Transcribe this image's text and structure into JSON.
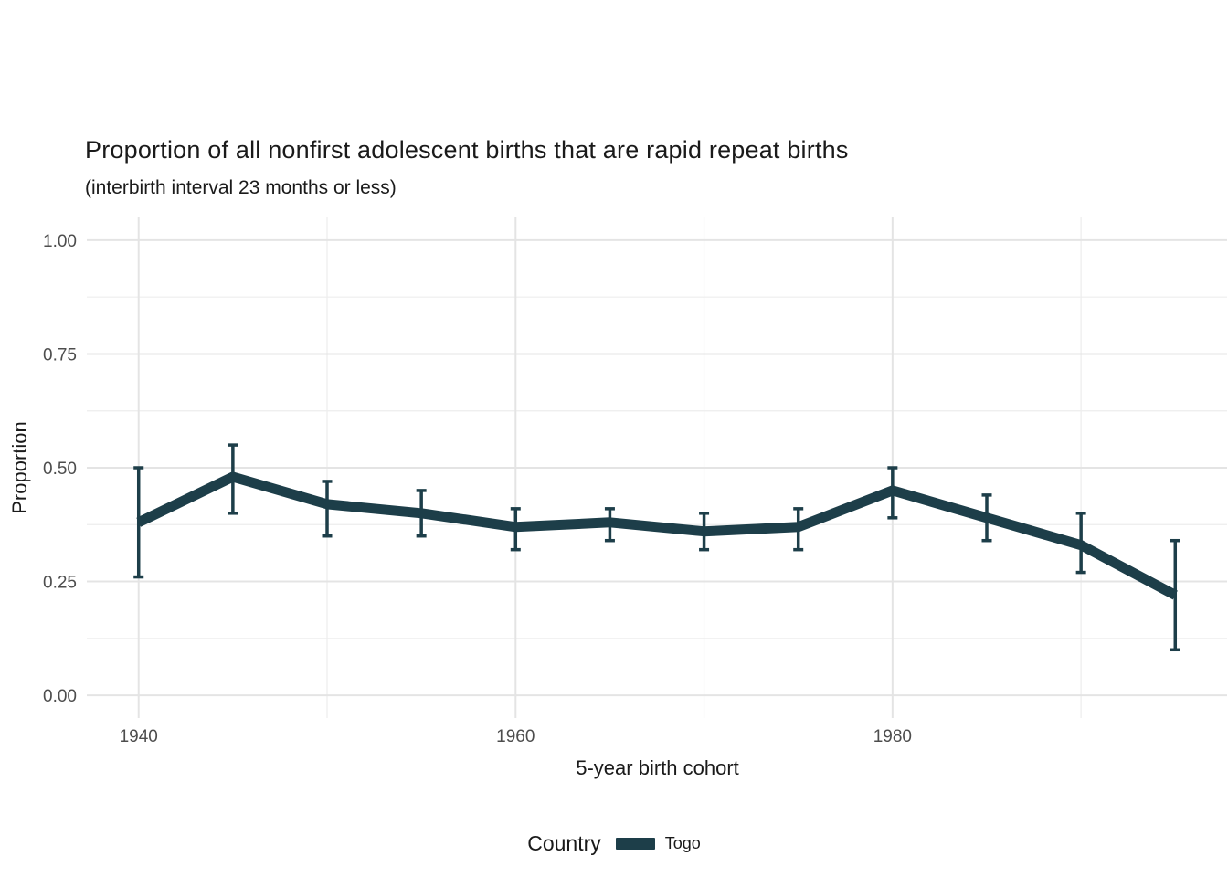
{
  "title": "Proportion of all nonfirst adolescent births that are rapid repeat births",
  "subtitle": "(interbirth interval 23 months or less)",
  "axes": {
    "y_label": "Proportion",
    "x_label": "5-year birth cohort",
    "y_tick_labels": [
      "0.00",
      "0.25",
      "0.50",
      "0.75",
      "1.00"
    ],
    "x_tick_labels": [
      "1940",
      "1960",
      "1980"
    ]
  },
  "legend": {
    "title": "Country",
    "items": [
      {
        "label": "Togo",
        "color": "#1d3e49",
        "swatch": "line"
      }
    ],
    "position": "bottom"
  },
  "colors": {
    "line": "#1d3e49",
    "grid_major": "#e4e4e4",
    "grid_minor": "#ededed",
    "tick_text": "#4d4d4d",
    "text": "#1a1a1a",
    "background": "#ffffff"
  },
  "chart_data": {
    "type": "line",
    "title": "Proportion of all nonfirst adolescent births that are rapid repeat births",
    "subtitle": "(interbirth interval 23 months or less)",
    "xlabel": "5-year birth cohort",
    "ylabel": "Proportion",
    "grid": true,
    "legend_position": "bottom",
    "xlim": [
      1940,
      1995
    ],
    "ylim": [
      0,
      1
    ],
    "x_major_ticks": [
      1940,
      1960,
      1980
    ],
    "x_minor_ticks": [
      1950,
      1970,
      1990
    ],
    "y_major_ticks": [
      0,
      0.25,
      0.5,
      0.75,
      1
    ],
    "y_minor_ticks": [
      0.125,
      0.375,
      0.625,
      0.875
    ],
    "series": [
      {
        "name": "Togo",
        "color": "#1d3e49",
        "x": [
          1940,
          1945,
          1950,
          1955,
          1960,
          1965,
          1970,
          1975,
          1980,
          1985,
          1990,
          1995
        ],
        "y": [
          0.38,
          0.48,
          0.42,
          0.4,
          0.37,
          0.38,
          0.36,
          0.37,
          0.45,
          0.39,
          0.33,
          0.22
        ],
        "ci_low": [
          0.26,
          0.4,
          0.35,
          0.35,
          0.32,
          0.34,
          0.32,
          0.32,
          0.39,
          0.34,
          0.27,
          0.1
        ],
        "ci_high": [
          0.5,
          0.55,
          0.47,
          0.45,
          0.41,
          0.41,
          0.4,
          0.41,
          0.5,
          0.44,
          0.4,
          0.34
        ]
      }
    ]
  }
}
